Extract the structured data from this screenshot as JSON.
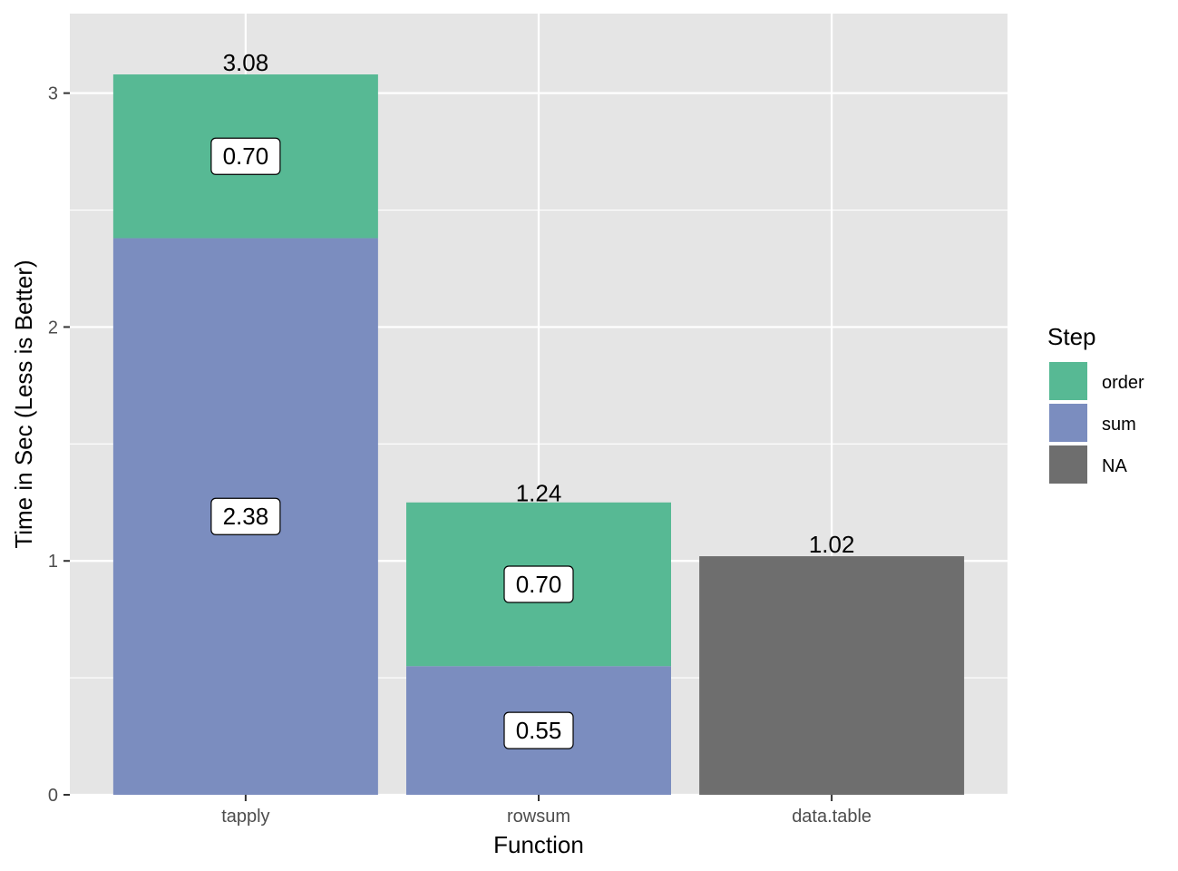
{
  "chart_data": {
    "type": "bar",
    "stacked": true,
    "categories": [
      "tapply",
      "rowsum",
      "data.table"
    ],
    "series": [
      {
        "name": "sum",
        "color": "#7b8dbf",
        "values": [
          2.38,
          0.55,
          null
        ]
      },
      {
        "name": "order",
        "color": "#57b994",
        "values": [
          0.7,
          0.7,
          null
        ]
      },
      {
        "name": "NA",
        "color": "#6e6e6e",
        "values": [
          null,
          null,
          1.02
        ]
      }
    ],
    "segment_labels": [
      {
        "category": "tapply",
        "series": "sum",
        "text": "2.38"
      },
      {
        "category": "tapply",
        "series": "order",
        "text": "0.70"
      },
      {
        "category": "rowsum",
        "series": "sum",
        "text": "0.55"
      },
      {
        "category": "rowsum",
        "series": "order",
        "text": "0.70"
      }
    ],
    "totals": [
      {
        "category": "tapply",
        "value": 3.08,
        "text": "3.08"
      },
      {
        "category": "rowsum",
        "value": 1.24,
        "text": "1.24"
      },
      {
        "category": "data.table",
        "value": 1.02,
        "text": "1.02"
      }
    ],
    "xlabel": "Function",
    "ylabel": "Time in Sec (Less is Better)",
    "ylim": [
      0,
      3.34
    ],
    "yticks": [
      0,
      1,
      2,
      3
    ],
    "yticks_labels": [
      "0",
      "1",
      "2",
      "3"
    ],
    "grid": true,
    "panel_background": "#e5e5e5",
    "legend": {
      "title": "Step",
      "position": "right",
      "entries": [
        {
          "label": "order",
          "color": "#57b994"
        },
        {
          "label": "sum",
          "color": "#7b8dbf"
        },
        {
          "label": "NA",
          "color": "#6e6e6e"
        }
      ]
    }
  }
}
